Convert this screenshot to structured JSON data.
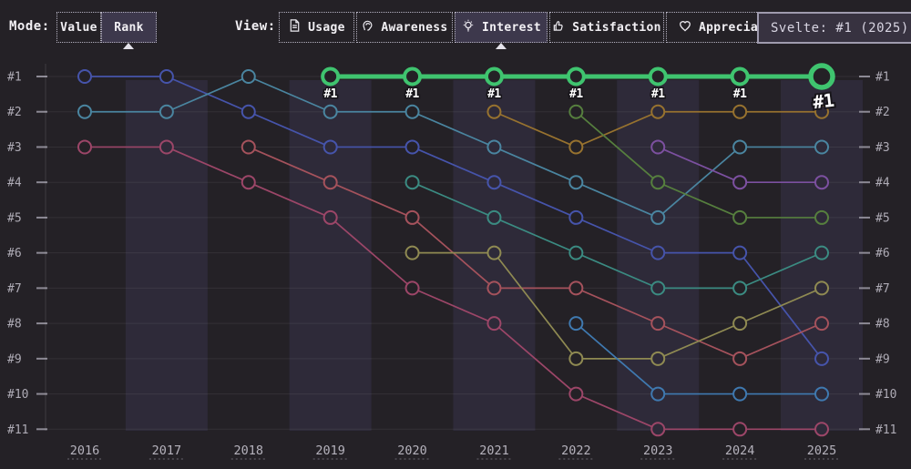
{
  "header": {
    "mode_label": "Mode:",
    "mode_options": [
      {
        "label": "Value",
        "selected": false
      },
      {
        "label": "Rank",
        "selected": true
      }
    ],
    "view_label": "View:",
    "view_options": [
      {
        "label": "Usage",
        "icon": "document-icon",
        "selected": false
      },
      {
        "label": "Awareness",
        "icon": "ear-icon",
        "selected": false
      },
      {
        "label": "Interest",
        "icon": "lightbulb-icon",
        "selected": true
      },
      {
        "label": "Satisfaction",
        "icon": "thumbs-up-icon",
        "selected": false
      },
      {
        "label": "Appreciation",
        "icon": "heart-icon",
        "selected": false
      }
    ]
  },
  "tooltip": {
    "text": "Svelte: #1 (2025)"
  },
  "colors": {
    "background": "#242126",
    "band": "#2e2a39",
    "accent_green": "#3fc46f",
    "grid": "rgba(255,255,255,0.07)",
    "tick": "#8d8a95",
    "axis_text": "#aeabb5",
    "selected_button_bg": "#3d384c",
    "tooltip_bg": "#373240",
    "tooltip_border": "#9f9bae"
  },
  "chart_data": {
    "type": "line",
    "subtype": "rank-bump",
    "title": "",
    "xlabel": "",
    "ylabel": "",
    "x": [
      2016,
      2017,
      2018,
      2019,
      2020,
      2021,
      2022,
      2023,
      2024,
      2025
    ],
    "rank_labels": [
      "#1",
      "#2",
      "#3",
      "#4",
      "#5",
      "#6",
      "#7",
      "#8",
      "#9",
      "#10",
      "#11"
    ],
    "y_axis_inverted": true,
    "ylim": [
      1,
      11
    ],
    "grid": true,
    "band_years": [
      2017,
      2019,
      2021,
      2023,
      2025
    ],
    "legend_position": "none",
    "series": [
      {
        "name": "series-indigo",
        "color": "#4654ab",
        "start": 2016,
        "ranks": [
          1,
          1,
          2,
          3,
          3,
          4,
          5,
          6,
          6,
          9
        ]
      },
      {
        "name": "series-teal",
        "color": "#4a85a0",
        "start": 2016,
        "ranks": [
          2,
          2,
          1,
          2,
          2,
          3,
          4,
          5,
          3,
          3
        ]
      },
      {
        "name": "series-rose",
        "color": "#9c4668",
        "start": 2016,
        "ranks": [
          3,
          3,
          4,
          5,
          7,
          8,
          10,
          11,
          11,
          11
        ]
      },
      {
        "name": "series-red",
        "color": "#a5525c",
        "start": 2018,
        "ranks": [
          3,
          4,
          5,
          7,
          7,
          8,
          9,
          8
        ]
      },
      {
        "name": "series-seagreen",
        "color": "#3b8b82",
        "start": 2020,
        "ranks": [
          4,
          5,
          6,
          7,
          7,
          6
        ]
      },
      {
        "name": "series-khaki",
        "color": "#8f8a52",
        "start": 2020,
        "ranks": [
          6,
          6,
          9,
          9,
          8,
          7
        ]
      },
      {
        "name": "series-brown",
        "color": "#97722f",
        "start": 2021,
        "ranks": [
          2,
          3,
          2,
          2,
          2
        ]
      },
      {
        "name": "series-green",
        "color": "#567f3e",
        "start": 2022,
        "ranks": [
          2,
          4,
          5,
          5
        ]
      },
      {
        "name": "series-steelblue",
        "color": "#3f79b0",
        "start": 2022,
        "ranks": [
          8,
          10,
          10,
          10
        ]
      },
      {
        "name": "series-purple",
        "color": "#7c50a0",
        "start": 2023,
        "ranks": [
          3,
          4,
          4
        ]
      },
      {
        "name": "Svelte",
        "color": "#3fc46f",
        "start": 2019,
        "ranks": [
          1,
          1,
          1,
          1,
          1,
          1,
          1
        ],
        "highlight": true
      }
    ],
    "annotations": {
      "point_labels": [
        {
          "year": 2019,
          "text": "#1"
        },
        {
          "year": 2020,
          "text": "#1"
        },
        {
          "year": 2021,
          "text": "#1"
        },
        {
          "year": 2022,
          "text": "#1"
        },
        {
          "year": 2023,
          "text": "#1"
        },
        {
          "year": 2024,
          "text": "#1"
        }
      ],
      "final_label": {
        "year": 2025,
        "text": "#1"
      }
    }
  }
}
